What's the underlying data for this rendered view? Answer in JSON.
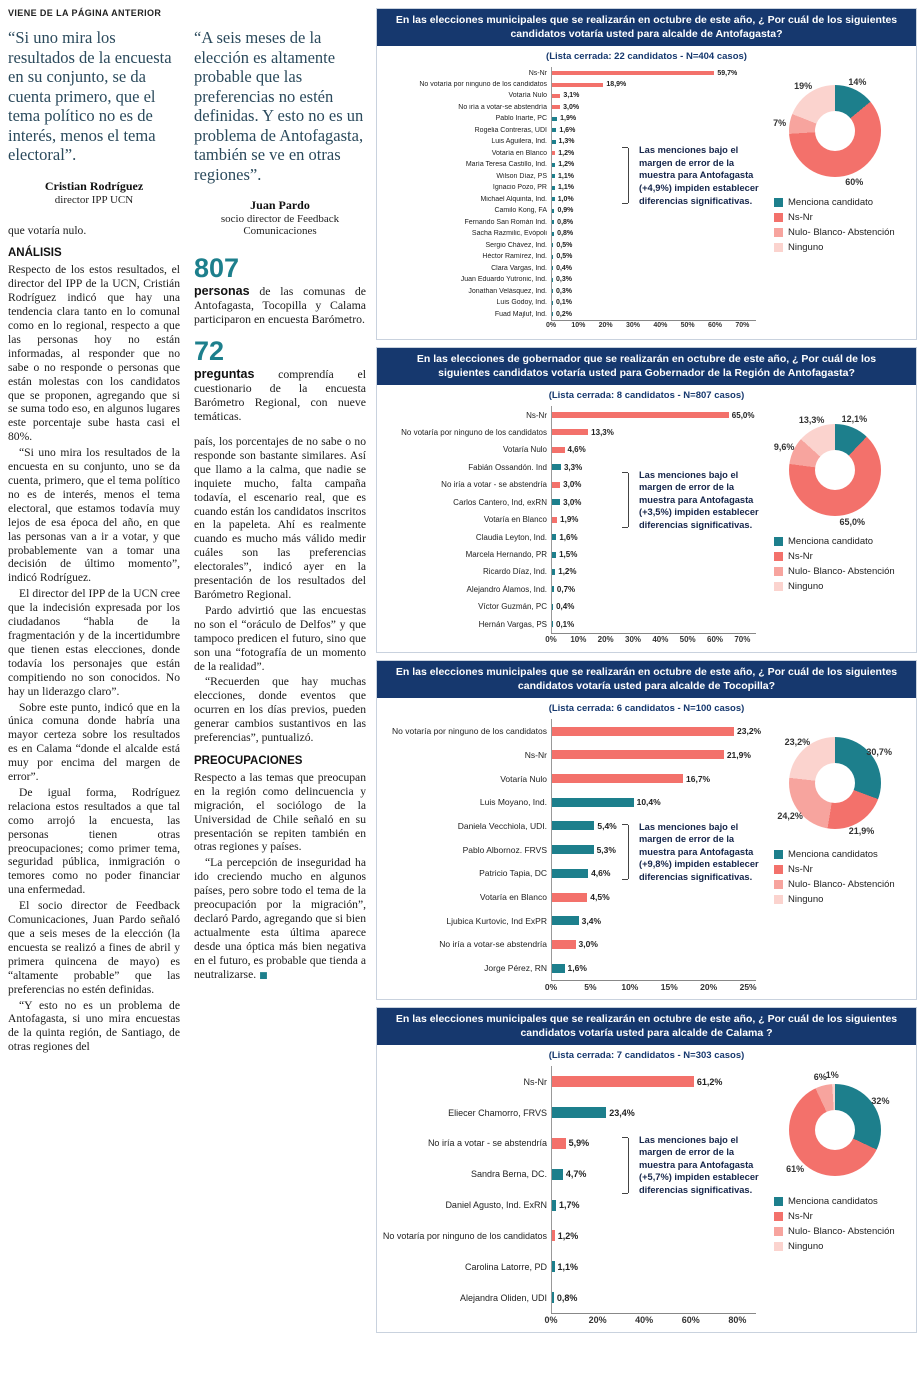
{
  "kicker": "VIENE DE LA PÁGINA ANTERIOR",
  "colors": {
    "teal": "#1d7f8c",
    "red": "#f3716b",
    "pink": "#f7a49e",
    "lightpink": "#fbd3ce",
    "navy": "#16386e"
  },
  "quotes": [
    {
      "text": "“Si uno mira los resultados de la encuesta en su conjunto, se da cuenta primero, que el tema político no es de interés, menos el tema electoral”.",
      "author": "Cristian Rodríguez",
      "role": "director IPP UCN"
    },
    {
      "text": "“A seis meses de la elección es altamente probable que las preferencias no estén definidas. Y esto no es un problema de Antofagasta, también se ve en otras regiones”.",
      "author": "Juan Pardo",
      "role": "socio director de Feedback Comunicaciones"
    }
  ],
  "article": {
    "col1": [
      {
        "type": "p",
        "noindent": true,
        "text": "que votaría nulo."
      },
      {
        "type": "h",
        "text": "ANÁLISIS"
      },
      {
        "type": "p",
        "noindent": true,
        "text": "Respecto de los estos resultados, el director del IPP de la UCN, Cristián Rodríguez indicó que hay una tendencia clara tanto en lo comunal como en lo regional, respecto a que las personas hoy no están informadas, al responder que no sabe o no responde o personas que están molestas con los candidatos que se proponen, agregando que si se suma todo eso, en algunos lugares este porcentaje sube hasta casi el 80%."
      },
      {
        "type": "p",
        "text": "“Si uno mira los resultados de la encuesta en su conjunto, uno se da cuenta, primero, que el tema político no es de interés, menos el tema electoral, que estamos todavía muy lejos de esa época del año, en que las personas van a ir a votar, y que probablemente van a tomar una decisión de último momento”, indicó Rodríguez."
      },
      {
        "type": "p",
        "text": "El director del IPP de la UCN cree que la indecisión expresada por los ciudadanos “habla de la fragmentación y de la incertidumbre que tienen estas elecciones, donde todavía los personajes que están compitiendo no son conocidos. No hay un liderazgo claro”."
      },
      {
        "type": "p",
        "text": "Sobre este punto, indicó que en la única comuna donde habría una mayor certeza sobre los resultados es en Calama “donde el alcalde está muy por encima del margen de error”."
      },
      {
        "type": "p",
        "text": "De igual forma, Rodríguez relaciona estos resultados a que tal como arrojó la encuesta, las personas tienen otras preocupaciones; como primer tema, seguridad pública, inmigración o temores como no poder financiar una enfermedad."
      },
      {
        "type": "p",
        "text": "El socio director de Feedback Comunicaciones, Juan Pardo señaló que a seis meses de la elección (la encuesta se realizó a fines de abril y primera quincena de mayo) es “altamente probable” que las preferencias no estén definidas."
      },
      {
        "type": "p",
        "text": "“Y esto no es un problema de Antofagasta, si uno mira encuestas de la quinta región, de Santiago, de otras regiones del"
      }
    ],
    "col2": [
      {
        "type": "stat",
        "number": "807",
        "bold": "personas",
        "text": "de las comunas de Antofagasta, Tocopilla y Calama participaron en encuesta Barómetro."
      },
      {
        "type": "stat",
        "number": "72",
        "bold": "preguntas",
        "text": "comprendía el cuestionario de la encuesta Barómetro Regional, con nueve temáticas."
      },
      {
        "type": "p",
        "noindent": true,
        "text": "país, los porcentajes de no sabe o no responde son bastante similares. Así que llamo a la calma, que nadie se inquiete mucho, falta campaña todavía, el escenario real, que es cuando están los candidatos inscritos en la papeleta. Ahí es realmente cuando es mucho más válido medir cuáles son las preferencias electorales”, indicó ayer en la presentación de los resultados del Barómetro Regional."
      },
      {
        "type": "p",
        "text": "Pardo advirtió que las encuestas no son el “oráculo de Delfos” y que tampoco predicen el futuro, sino que son una “fotografía de un momento de la realidad”."
      },
      {
        "type": "p",
        "text": "“Recuerden que hay muchas elecciones, donde eventos que ocurren en los días previos, pueden generar cambios sustantivos en las preferencias”, puntualizó."
      },
      {
        "type": "h",
        "text": "PREOCUPACIONES"
      },
      {
        "type": "p",
        "noindent": true,
        "text": "Respecto a las temas que preocupan en la región como delincuencia y migración, el sociólogo de la Universidad de Chile señaló en su presentación se repiten también en otras regiones y países."
      },
      {
        "type": "p",
        "end": true,
        "text": "“La percepción de inseguridad ha ido creciendo mucho en algunos países, pero sobre todo el tema de la preocupación por la migración”, declaró Pardo, agregando que si bien actualmente esta última aparece desde una óptica más bien negativa en el futuro, es probable que tienda a neutralizarse."
      }
    ]
  },
  "chart_data": [
    {
      "type": "bar",
      "tp": "En las elecciones municipales que se realizarán en octubre de este año, ",
      "tb": "¿ Por cuál de los siguientes candidatos votaría usted para alcalde de Antofagasta?",
      "sub": "(Lista cerrada: 22 candidatos - N=404 casos)",
      "xmax": 75,
      "ticks": [
        "0%",
        "10%",
        "20%",
        "30%",
        "40%",
        "50%",
        "60%",
        "70%"
      ],
      "note": "Las menciones bajo el margen de error de la muestra para Antofagasta (+4,9%) impiden establecer diferencias significativas.",
      "bars": [
        {
          "l": "Ns-Nr",
          "v": 59.7,
          "d": "59,7%",
          "t": "n"
        },
        {
          "l": "No votaría por ninguno de los candidatos",
          "v": 18.9,
          "d": "18,9%",
          "t": "n"
        },
        {
          "l": "Votaría Nulo",
          "v": 3.1,
          "d": "3,1%",
          "t": "n"
        },
        {
          "l": "No iría a votar-se abstendría",
          "v": 3.0,
          "d": "3,0%",
          "t": "n"
        },
        {
          "l": "Pablo Iriarte, PC",
          "v": 1.9,
          "d": "1,9%",
          "t": "c"
        },
        {
          "l": "Rogelia Contreras, UDI",
          "v": 1.6,
          "d": "1,6%",
          "t": "c"
        },
        {
          "l": "Luis Aguilera, Ind.",
          "v": 1.3,
          "d": "1,3%",
          "t": "c"
        },
        {
          "l": "Votaría en Blanco",
          "v": 1.2,
          "d": "1,2%",
          "t": "n"
        },
        {
          "l": "María Teresa Castillo, Ind.",
          "v": 1.2,
          "d": "1,2%",
          "t": "c"
        },
        {
          "l": "Wilson Díaz, PS",
          "v": 1.1,
          "d": "1,1%",
          "t": "c"
        },
        {
          "l": "Ignacio Pozo, PR",
          "v": 1.1,
          "d": "1,1%",
          "t": "c"
        },
        {
          "l": "Michael Alquinta, Ind.",
          "v": 1.0,
          "d": "1,0%",
          "t": "c"
        },
        {
          "l": "Camilo Kong, FA",
          "v": 0.9,
          "d": "0,9%",
          "t": "c"
        },
        {
          "l": "Fernando San Román Ind.",
          "v": 0.8,
          "d": "0,8%",
          "t": "c"
        },
        {
          "l": "Sacha Razmilic, Evópoli",
          "v": 0.8,
          "d": "0,8%",
          "t": "c"
        },
        {
          "l": "Sergio Chávez, Ind.",
          "v": 0.5,
          "d": "0,5%",
          "t": "c"
        },
        {
          "l": "Héctor Ramírez, Ind.",
          "v": 0.5,
          "d": "0,5%",
          "t": "c"
        },
        {
          "l": "Clara Vargas, Ind.",
          "v": 0.4,
          "d": "0,4%",
          "t": "c"
        },
        {
          "l": "Juan Eduardo Yutronic, Ind.",
          "v": 0.3,
          "d": "0,3%",
          "t": "c"
        },
        {
          "l": "Jonathan Velásquez, Ind.",
          "v": 0.3,
          "d": "0,3%",
          "t": "c"
        },
        {
          "l": "Luis Godoy, Ind.",
          "v": 0.1,
          "d": "0,1%",
          "t": "c"
        },
        {
          "l": "Fuad Majluf, Ind.",
          "v": 0.2,
          "d": "0,2%",
          "t": "c"
        }
      ],
      "donut": [
        {
          "l": "Menciona candidato",
          "v": 14,
          "d": "14%",
          "c": "teal"
        },
        {
          "l": "Ns-Nr",
          "v": 60,
          "d": "60%",
          "c": "red"
        },
        {
          "l": "Nulo- Blanco- Abstención",
          "v": 7,
          "d": "7%",
          "c": "pink"
        },
        {
          "l": "Ninguno",
          "v": 19,
          "d": "19%",
          "c": "lightpink"
        }
      ],
      "legend": [
        "Menciona candidato",
        "Ns-Nr",
        "Nulo- Blanco- Abstención",
        "Ninguno"
      ]
    },
    {
      "type": "bar",
      "tp": "En las elecciones de gobernador que se realizarán en octubre de este año, ",
      "tb": "¿ Por cuál de los siguientes candidatos votaría usted para Gobernador de la Región de Antofagasta?",
      "sub": "(Lista cerrada: 8 candidatos - N=807 casos)",
      "xmax": 75,
      "ticks": [
        "0%",
        "10%",
        "20%",
        "30%",
        "40%",
        "50%",
        "60%",
        "70%"
      ],
      "note": "Las menciones bajo el margen de error de la muestra para Antofagasta (+3,5%) impiden establecer diferencias significativas.",
      "bars": [
        {
          "l": "Ns-Nr",
          "v": 65.0,
          "d": "65,0%",
          "t": "n"
        },
        {
          "l": "No votaría por ninguno de los candidatos",
          "v": 13.3,
          "d": "13,3%",
          "t": "n"
        },
        {
          "l": "Votaría Nulo",
          "v": 4.6,
          "d": "4,6%",
          "t": "n"
        },
        {
          "l": "Fabián Ossandón. Ind",
          "v": 3.3,
          "d": "3,3%",
          "t": "c"
        },
        {
          "l": "No iría a votar - se abstendría",
          "v": 3.0,
          "d": "3,0%",
          "t": "n"
        },
        {
          "l": "Carlos Cantero, Ind, exRN",
          "v": 3.0,
          "d": "3,0%",
          "t": "c"
        },
        {
          "l": "Votaría en Blanco",
          "v": 1.9,
          "d": "1,9%",
          "t": "n"
        },
        {
          "l": "Claudia Leyton, Ind.",
          "v": 1.6,
          "d": "1,6%",
          "t": "c"
        },
        {
          "l": "Marcela Hernando, PR",
          "v": 1.5,
          "d": "1,5%",
          "t": "c"
        },
        {
          "l": "Ricardo Díaz, Ind.",
          "v": 1.2,
          "d": "1,2%",
          "t": "c"
        },
        {
          "l": "Alejandro Álamos, Ind.",
          "v": 0.7,
          "d": "0,7%",
          "t": "c"
        },
        {
          "l": "Víctor Guzmán, PC",
          "v": 0.4,
          "d": "0,4%",
          "t": "c"
        },
        {
          "l": "Hernán Vargas, PS",
          "v": 0.1,
          "d": "0,1%",
          "t": "c"
        }
      ],
      "donut": [
        {
          "l": "Menciona candidato",
          "v": 12.1,
          "d": "12,1%",
          "c": "teal"
        },
        {
          "l": "Ns-Nr",
          "v": 65.0,
          "d": "65,0%",
          "c": "red"
        },
        {
          "l": "Nulo- Blanco- Abstención",
          "v": 9.6,
          "d": "9,6%",
          "c": "pink"
        },
        {
          "l": "Ninguno",
          "v": 13.3,
          "d": "13,3%",
          "c": "lightpink"
        }
      ],
      "legend": [
        "Menciona candidato",
        "Ns-Nr",
        "Nulo- Blanco- Abstención",
        "Ninguno"
      ]
    },
    {
      "type": "bar",
      "tp": "En las elecciones municipales que se realizarán en octubre de este año, ",
      "tb": "¿ Por cuál de los siguientes candidatos votaría usted para alcalde de Tocopilla?",
      "sub": "(Lista cerrada: 6 candidatos - N=100 casos)",
      "xmax": 26,
      "ticks": [
        "0%",
        "5%",
        "10%",
        "15%",
        "20%",
        "25%"
      ],
      "note": "Las menciones bajo el margen de error de la muestra para Antofagasta (+9,8%) impiden establecer diferencias significativas.",
      "bars": [
        {
          "l": "No votaría por ninguno de los candidatos",
          "v": 23.2,
          "d": "23,2%",
          "t": "n"
        },
        {
          "l": "Ns-Nr",
          "v": 21.9,
          "d": "21,9%",
          "t": "n"
        },
        {
          "l": "Votaría Nulo",
          "v": 16.7,
          "d": "16,7%",
          "t": "n"
        },
        {
          "l": "Luis Moyano, Ind.",
          "v": 10.4,
          "d": "10,4%",
          "t": "c"
        },
        {
          "l": "Daniela Vecchiola, UDI.",
          "v": 5.4,
          "d": "5,4%",
          "t": "c"
        },
        {
          "l": "Pablo Albornoz. FRVS",
          "v": 5.3,
          "d": "5,3%",
          "t": "c"
        },
        {
          "l": "Patricio Tapia, DC",
          "v": 4.6,
          "d": "4,6%",
          "t": "c"
        },
        {
          "l": "Votaría en Blanco",
          "v": 4.5,
          "d": "4,5%",
          "t": "n"
        },
        {
          "l": "Ljubica Kurtovic, Ind ExPR",
          "v": 3.4,
          "d": "3,4%",
          "t": "c"
        },
        {
          "l": "No iría a votar-se abstendría",
          "v": 3.0,
          "d": "3,0%",
          "t": "n"
        },
        {
          "l": "Jorge Pérez, RN",
          "v": 1.6,
          "d": "1,6%",
          "t": "c"
        }
      ],
      "donut": [
        {
          "l": "Menciona candidatos",
          "v": 30.7,
          "d": "30,7%",
          "c": "teal"
        },
        {
          "l": "Ns-Nr",
          "v": 21.9,
          "d": "21,9%",
          "c": "red"
        },
        {
          "l": "Nulo- Blanco- Abstención",
          "v": 24.2,
          "d": "24,2%",
          "c": "pink"
        },
        {
          "l": "Ninguno",
          "v": 23.2,
          "d": "23,2%",
          "c": "lightpink"
        }
      ],
      "legend": [
        "Menciona candidatos",
        "Ns-Nr",
        "Nulo- Blanco- Abstención",
        "Ninguno"
      ]
    },
    {
      "type": "bar",
      "tp": "En las elecciones municipales que se realizarán en octubre de este año, ",
      "tb": "¿ Por cuál de los siguientes candidatos votaría usted para alcalde de Calama ?",
      "sub": "(Lista cerrada: 7 candidatos - N=303 casos)",
      "xmax": 88,
      "ticks": [
        "0%",
        "20%",
        "40%",
        "60%",
        "80%"
      ],
      "note": "Las menciones bajo el margen de error de la muestra para Antofagasta (+5,7%) impiden establecer diferencias significativas.",
      "bars": [
        {
          "l": "Ns-Nr",
          "v": 61.2,
          "d": "61,2%",
          "t": "n"
        },
        {
          "l": "Eliecer Chamorro, FRVS",
          "v": 23.4,
          "d": "23,4%",
          "t": "c"
        },
        {
          "l": "No iría a votar - se  abstendría",
          "v": 5.9,
          "d": "5,9%",
          "t": "n"
        },
        {
          "l": "Sandra Berna, DC.",
          "v": 4.7,
          "d": "4,7%",
          "t": "c"
        },
        {
          "l": "Daniel Agusto, Ind. ExRN",
          "v": 1.7,
          "d": "1,7%",
          "t": "c"
        },
        {
          "l": "No votaría por ninguno de los candidatos",
          "v": 1.2,
          "d": "1,2%",
          "t": "n"
        },
        {
          "l": "Carolina Latorre, PD",
          "v": 1.1,
          "d": "1,1%",
          "t": "c"
        },
        {
          "l": "Alejandra Oliden, UDI",
          "v": 0.8,
          "d": "0,8%",
          "t": "c"
        }
      ],
      "donut": [
        {
          "l": "Menciona candidatos",
          "v": 32,
          "d": "32%",
          "c": "teal"
        },
        {
          "l": "Ns-Nr",
          "v": 61,
          "d": "61%",
          "c": "red"
        },
        {
          "l": "Nulo- Blanco- Abstención",
          "v": 6,
          "d": "6%",
          "c": "pink"
        },
        {
          "l": "Ninguno",
          "v": 1,
          "d": "1%",
          "c": "lightpink"
        }
      ],
      "legend": [
        "Menciona candidatos",
        "Ns-Nr",
        "Nulo- Blanco- Abstención",
        "Ninguno"
      ]
    }
  ]
}
